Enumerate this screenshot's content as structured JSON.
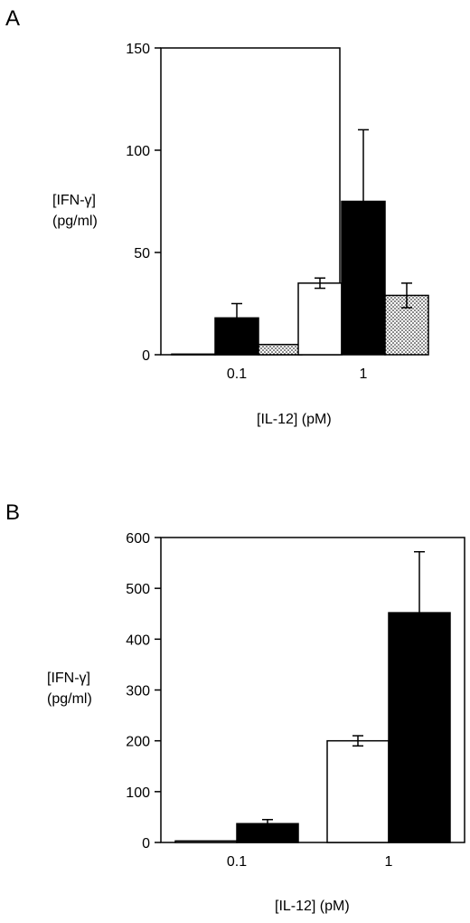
{
  "chart_data": [
    {
      "panel": "A",
      "type": "bar",
      "ylabel_lines": [
        "[IFN-γ]",
        "(pg/ml)"
      ],
      "xlabel": "[IL-12] (pM)",
      "ylim": [
        0,
        150
      ],
      "yticks": [
        0,
        50,
        100,
        150
      ],
      "categories": [
        "0.1",
        "1"
      ],
      "series": [
        {
          "fill": "white",
          "values": [
            0.3,
            35
          ],
          "errors": [
            0,
            2.5
          ]
        },
        {
          "fill": "black",
          "values": [
            18,
            75
          ],
          "errors": [
            7,
            35
          ]
        },
        {
          "fill": "dotted",
          "values": [
            5,
            29
          ],
          "errors": [
            0,
            6
          ]
        }
      ],
      "grid": false,
      "legend": "none"
    },
    {
      "panel": "B",
      "type": "bar",
      "ylabel_lines": [
        "[IFN-γ]",
        "(pg/ml)"
      ],
      "xlabel": "[IL-12] (pM)",
      "ylim": [
        0,
        600
      ],
      "yticks": [
        0,
        100,
        200,
        300,
        400,
        500,
        600
      ],
      "categories": [
        "0.1",
        "1"
      ],
      "series": [
        {
          "fill": "white",
          "values": [
            3,
            200
          ],
          "errors": [
            0,
            10
          ]
        },
        {
          "fill": "black",
          "values": [
            37,
            452
          ],
          "errors": [
            8,
            120
          ]
        }
      ],
      "grid": false,
      "legend": "none"
    }
  ]
}
